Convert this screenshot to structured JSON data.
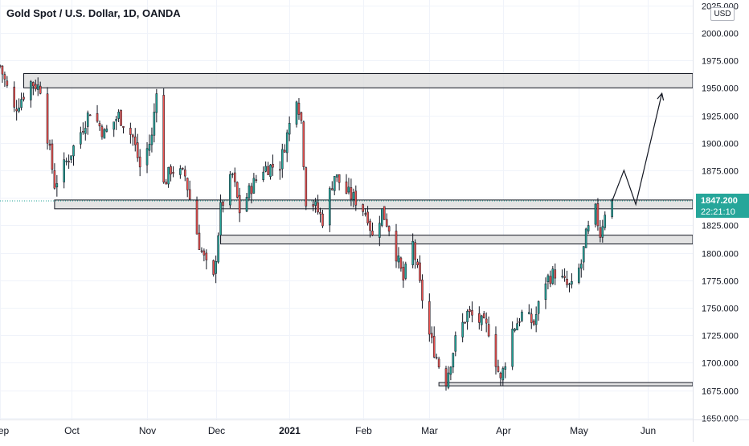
{
  "header": {
    "title": "Gold Spot / U.S. Dollar, 1D, OANDA",
    "currency": "USD"
  },
  "price_label": {
    "price": "1847.200",
    "countdown": "22:21:10"
  },
  "colors": {
    "up": "#26a69a",
    "down": "#ef5350",
    "zone_fill": "#dcdcdc",
    "price_tag": "#26a69a"
  },
  "chart_data": {
    "type": "candlestick",
    "symbol": "Gold Spot / U.S. Dollar, 1D, OANDA",
    "ylim": [
      1650,
      2025
    ],
    "y_ticks": [
      2025,
      2000,
      1975,
      1950,
      1925,
      1900,
      1875,
      1850,
      1825,
      1800,
      1775,
      1750,
      1725,
      1700,
      1675,
      1650
    ],
    "y_tick_labels": [
      "2025.000",
      "2000.000",
      "1975.000",
      "1950.000",
      "1925.000",
      "1900.000",
      "1875.000",
      "1850.000",
      "1825.000",
      "1800.000",
      "1775.000",
      "1750.000",
      "1725.000",
      "1700.000",
      "1675.000",
      "1650.000"
    ],
    "x_range": [
      "2020-09-01",
      "2021-06-20"
    ],
    "x_ticks": [
      {
        "date": "2020-09-01",
        "label": "Sep",
        "bold": false
      },
      {
        "date": "2020-10-01",
        "label": "Oct",
        "bold": false
      },
      {
        "date": "2020-11-02",
        "label": "Nov",
        "bold": false
      },
      {
        "date": "2020-12-01",
        "label": "Dec",
        "bold": false
      },
      {
        "date": "2021-01-01",
        "label": "2021",
        "bold": true
      },
      {
        "date": "2021-02-01",
        "label": "Feb",
        "bold": false
      },
      {
        "date": "2021-03-01",
        "label": "Mar",
        "bold": false
      },
      {
        "date": "2021-04-01",
        "label": "Apr",
        "bold": false
      },
      {
        "date": "2021-05-03",
        "label": "May",
        "bold": false
      },
      {
        "date": "2021-06-01",
        "label": "Jun",
        "bold": false
      }
    ],
    "close_anchors": [
      [
        "2020-09-01",
        1970
      ],
      [
        "2020-09-07",
        1930
      ],
      [
        "2020-09-14",
        1955
      ],
      [
        "2020-09-18",
        1950
      ],
      [
        "2020-09-24",
        1862
      ],
      [
        "2020-09-30",
        1887
      ],
      [
        "2020-10-05",
        1910
      ],
      [
        "2020-10-09",
        1930
      ],
      [
        "2020-10-15",
        1908
      ],
      [
        "2020-10-21",
        1925
      ],
      [
        "2020-10-27",
        1905
      ],
      [
        "2020-10-30",
        1878
      ],
      [
        "2020-11-04",
        1905
      ],
      [
        "2020-11-06",
        1951
      ],
      [
        "2020-11-09",
        1862
      ],
      [
        "2020-11-12",
        1876
      ],
      [
        "2020-11-18",
        1870
      ],
      [
        "2020-11-24",
        1808
      ],
      [
        "2020-11-27",
        1788
      ],
      [
        "2020-11-30",
        1776
      ],
      [
        "2020-12-03",
        1840
      ],
      [
        "2020-12-08",
        1871
      ],
      [
        "2020-12-11",
        1838
      ],
      [
        "2020-12-16",
        1860
      ],
      [
        "2020-12-21",
        1877
      ],
      [
        "2020-12-28",
        1880
      ],
      [
        "2021-01-04",
        1944
      ],
      [
        "2021-01-06",
        1920
      ],
      [
        "2021-01-08",
        1848
      ],
      [
        "2021-01-11",
        1845
      ],
      [
        "2021-01-15",
        1830
      ],
      [
        "2021-01-20",
        1871
      ],
      [
        "2021-01-25",
        1855
      ],
      [
        "2021-01-29",
        1848
      ],
      [
        "2021-02-03",
        1834
      ],
      [
        "2021-02-05",
        1814
      ],
      [
        "2021-02-09",
        1838
      ],
      [
        "2021-02-12",
        1823
      ],
      [
        "2021-02-18",
        1775
      ],
      [
        "2021-02-22",
        1808
      ],
      [
        "2021-02-25",
        1770
      ],
      [
        "2021-03-01",
        1725
      ],
      [
        "2021-03-05",
        1698
      ],
      [
        "2021-03-08",
        1684
      ],
      [
        "2021-03-12",
        1720
      ],
      [
        "2021-03-17",
        1745
      ],
      [
        "2021-03-22",
        1738
      ],
      [
        "2021-03-26",
        1730
      ],
      [
        "2021-03-31",
        1683
      ],
      [
        "2021-04-05",
        1730
      ],
      [
        "2021-04-09",
        1744
      ],
      [
        "2021-04-14",
        1736
      ],
      [
        "2021-04-19",
        1775
      ],
      [
        "2021-04-23",
        1782
      ],
      [
        "2021-04-28",
        1770
      ],
      [
        "2021-04-30",
        1768
      ],
      [
        "2021-05-04",
        1790
      ],
      [
        "2021-05-06",
        1815
      ],
      [
        "2021-05-10",
        1838
      ],
      [
        "2021-05-12",
        1817
      ],
      [
        "2021-05-14",
        1838
      ],
      [
        "2021-05-17",
        1847
      ]
    ],
    "zones": [
      {
        "from": "2020-09-11",
        "to": "2021-06-20",
        "low": 1950,
        "high": 1963
      },
      {
        "from": "2020-09-24",
        "to": "2021-06-20",
        "low": 1840,
        "high": 1848
      },
      {
        "from": "2020-12-03",
        "to": "2021-06-20",
        "low": 1808,
        "high": 1816
      },
      {
        "from": "2021-03-05",
        "to": "2021-06-20",
        "low": 1679,
        "high": 1682
      }
    ],
    "projection": [
      [
        "2021-05-17",
        1847
      ],
      [
        "2021-05-22",
        1875
      ],
      [
        "2021-05-27",
        1844
      ],
      [
        "2021-06-07",
        1945
      ]
    ],
    "last_price": 1847.2
  }
}
